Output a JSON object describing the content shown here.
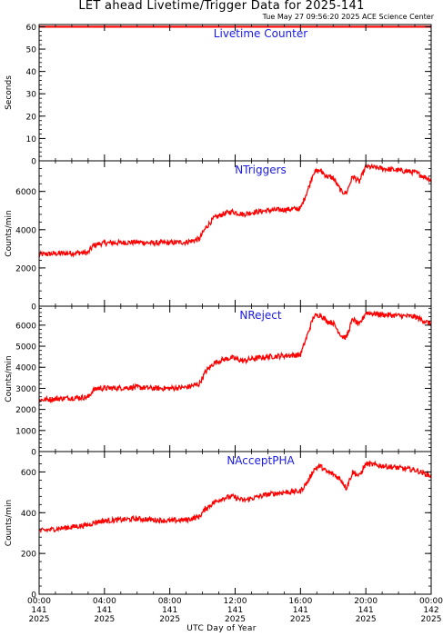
{
  "header": {
    "title": "LET ahead Livetime/Trigger Data for 2025-141",
    "timestamp": "Tue May 27 09:56:20 2025 ACE Science Center"
  },
  "x_axis": {
    "title": "UTC Day of Year",
    "ticks": [
      {
        "time": "00:00",
        "day": "141",
        "year": "2025"
      },
      {
        "time": "04:00",
        "day": "141",
        "year": "2025"
      },
      {
        "time": "08:00",
        "day": "141",
        "year": "2025"
      },
      {
        "time": "12:00",
        "day": "141",
        "year": "2025"
      },
      {
        "time": "16:00",
        "day": "141",
        "year": "2025"
      },
      {
        "time": "20:00",
        "day": "141",
        "year": "2025"
      },
      {
        "time": "00:00",
        "day": "142",
        "year": "2025"
      }
    ]
  },
  "colors": {
    "series": "#ff0000",
    "panel_title": "#1a1ae6",
    "axes": "#000000"
  },
  "chart_data": [
    {
      "type": "line",
      "title": "Livetime Counter",
      "ylabel": "Seconds",
      "xlim": [
        0,
        24
      ],
      "ylim": [
        0,
        61
      ],
      "yticks": [
        0,
        10,
        20,
        30,
        40,
        50,
        60
      ],
      "x_unit": "hours UTC, day 141",
      "series": [
        {
          "x": [
            0,
            24
          ],
          "values": [
            60,
            60
          ]
        }
      ]
    },
    {
      "type": "line",
      "title": "NTriggers",
      "ylabel": "Counts/min",
      "xlim": [
        0,
        24
      ],
      "ylim": [
        0,
        7600
      ],
      "yticks": [
        0,
        2000,
        4000,
        6000
      ],
      "x_unit": "hours UTC, day 141",
      "series": [
        {
          "x": [
            0,
            1,
            2,
            3,
            3.3,
            3.6,
            4,
            5,
            6,
            7,
            8,
            9,
            9.8,
            10.2,
            10.7,
            11.2,
            11.8,
            12.5,
            13,
            13.5,
            14,
            15,
            16,
            16.5,
            16.8,
            17.2,
            17.6,
            18,
            18.5,
            18.8,
            19.2,
            19.6,
            20,
            21,
            22,
            23,
            24
          ],
          "values": [
            2700,
            2750,
            2780,
            2800,
            3150,
            3250,
            3300,
            3320,
            3350,
            3300,
            3320,
            3350,
            3500,
            4100,
            4600,
            4800,
            4950,
            4800,
            4900,
            4950,
            5000,
            5050,
            5100,
            6200,
            7000,
            7100,
            6800,
            6700,
            6000,
            5900,
            6800,
            6500,
            7300,
            7200,
            7100,
            7000,
            6600
          ]
        }
      ]
    },
    {
      "type": "line",
      "title": "NReject",
      "ylabel": "Counts/min",
      "xlim": [
        0,
        24
      ],
      "ylim": [
        0,
        6900
      ],
      "yticks": [
        0,
        1000,
        2000,
        3000,
        4000,
        5000,
        6000
      ],
      "x_unit": "hours UTC, day 141",
      "series": [
        {
          "x": [
            0,
            1,
            2,
            3,
            3.3,
            3.6,
            4,
            5,
            6,
            7,
            8,
            9,
            9.8,
            10.2,
            10.7,
            11.2,
            11.8,
            12.5,
            13,
            13.5,
            14,
            15,
            16,
            16.5,
            16.8,
            17.2,
            17.6,
            18,
            18.5,
            18.8,
            19.2,
            19.6,
            20,
            21,
            22,
            23,
            24
          ],
          "values": [
            2450,
            2500,
            2550,
            2580,
            2900,
            3000,
            3000,
            3020,
            3050,
            3000,
            3000,
            3050,
            3200,
            3800,
            4200,
            4350,
            4450,
            4300,
            4400,
            4450,
            4500,
            4550,
            4600,
            5700,
            6400,
            6500,
            6200,
            6100,
            5500,
            5400,
            6300,
            6000,
            6600,
            6500,
            6450,
            6400,
            6050
          ]
        }
      ]
    },
    {
      "type": "line",
      "title": "NAcceptPHA",
      "ylabel": "Counts/min",
      "xlim": [
        0,
        24
      ],
      "ylim": [
        0,
        700
      ],
      "yticks": [
        0,
        200,
        400,
        600
      ],
      "x_unit": "hours UTC, day 141",
      "series": [
        {
          "x": [
            0,
            1,
            2,
            3,
            3.5,
            4,
            5,
            6,
            7,
            8,
            9,
            9.8,
            10.2,
            10.7,
            11.2,
            11.8,
            12.5,
            13,
            13.5,
            14,
            15,
            16,
            16.5,
            16.8,
            17.2,
            17.6,
            18,
            18.5,
            18.8,
            19.2,
            19.6,
            20,
            21,
            22,
            23,
            24
          ],
          "values": [
            310,
            320,
            330,
            340,
            355,
            360,
            365,
            370,
            365,
            360,
            365,
            380,
            420,
            450,
            470,
            480,
            460,
            470,
            480,
            490,
            500,
            505,
            560,
            610,
            630,
            600,
            590,
            560,
            520,
            600,
            580,
            640,
            630,
            620,
            610,
            580
          ]
        }
      ]
    }
  ]
}
